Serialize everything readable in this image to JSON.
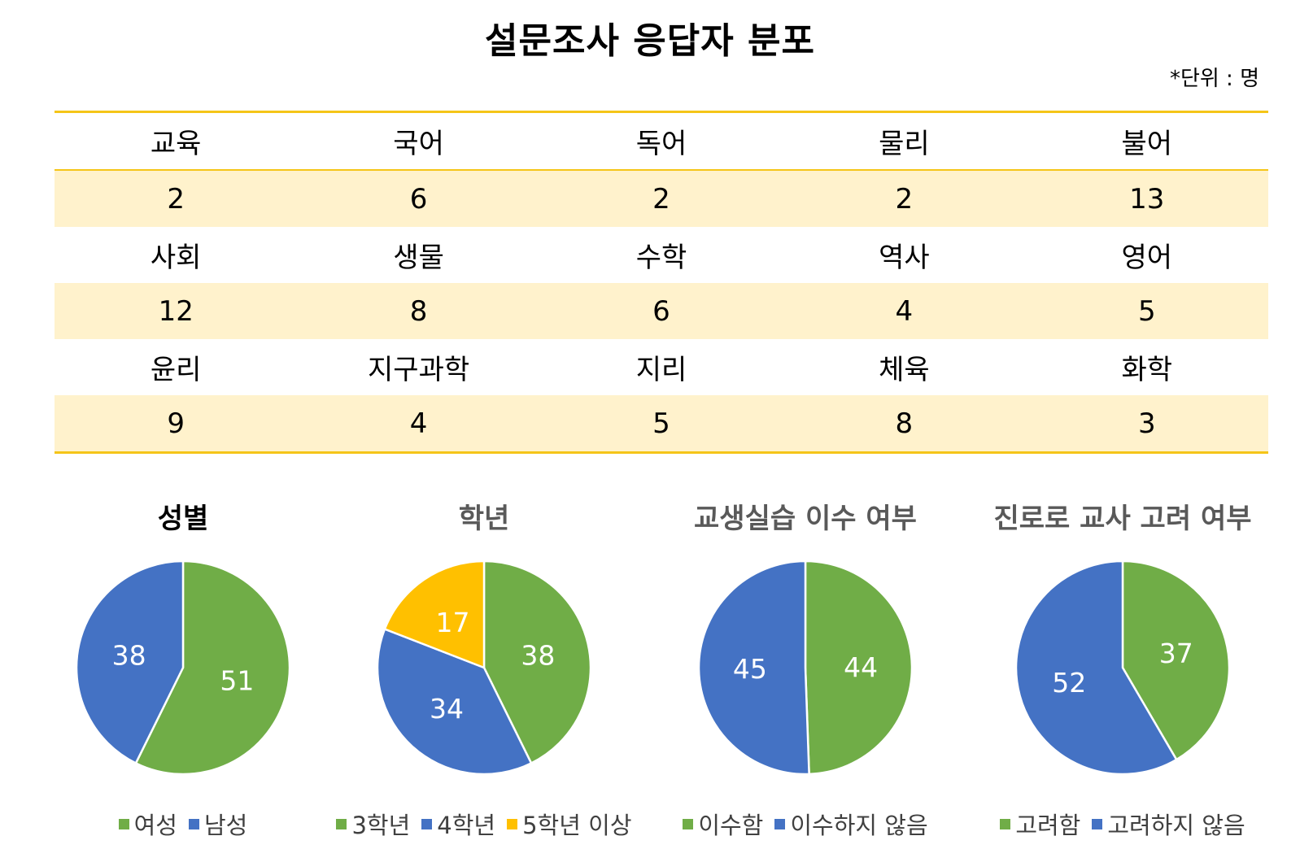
{
  "title": "설문조사 응답자 분포",
  "unit": "*단위 : 명",
  "majors": {
    "rows": [
      {
        "names": [
          "교육",
          "국어",
          "독어",
          "물리",
          "불어"
        ],
        "values": [
          "2",
          "6",
          "2",
          "2",
          "13"
        ]
      },
      {
        "names": [
          "사회",
          "생물",
          "수학",
          "역사",
          "영어"
        ],
        "values": [
          "12",
          "8",
          "6",
          "4",
          "5"
        ]
      },
      {
        "names": [
          "윤리",
          "지구과학",
          "지리",
          "체육",
          "화학"
        ],
        "values": [
          "9",
          "4",
          "5",
          "8",
          "3"
        ]
      }
    ]
  },
  "colors": {
    "green": "#70ad47",
    "blue": "#4472c4",
    "gold": "#ffc000"
  },
  "chart_data": [
    {
      "type": "pie",
      "title": "성별",
      "categories": [
        "여성",
        "남성"
      ],
      "values": [
        51,
        38
      ],
      "colors": [
        "#70ad47",
        "#4472c4"
      ]
    },
    {
      "type": "pie",
      "title": "학년",
      "categories": [
        "3학년",
        "4학년",
        "5학년 이상"
      ],
      "values": [
        38,
        34,
        17
      ],
      "colors": [
        "#70ad47",
        "#4472c4",
        "#ffc000"
      ]
    },
    {
      "type": "pie",
      "title": "교생실습 이수 여부",
      "categories": [
        "이수함",
        "이수하지 않음"
      ],
      "values": [
        44,
        45
      ],
      "colors": [
        "#70ad47",
        "#4472c4"
      ]
    },
    {
      "type": "pie",
      "title": "진로로 교사 고려 여부",
      "categories": [
        "고려함",
        "고려하지 않음"
      ],
      "values": [
        37,
        52
      ],
      "colors": [
        "#70ad47",
        "#4472c4"
      ]
    }
  ]
}
